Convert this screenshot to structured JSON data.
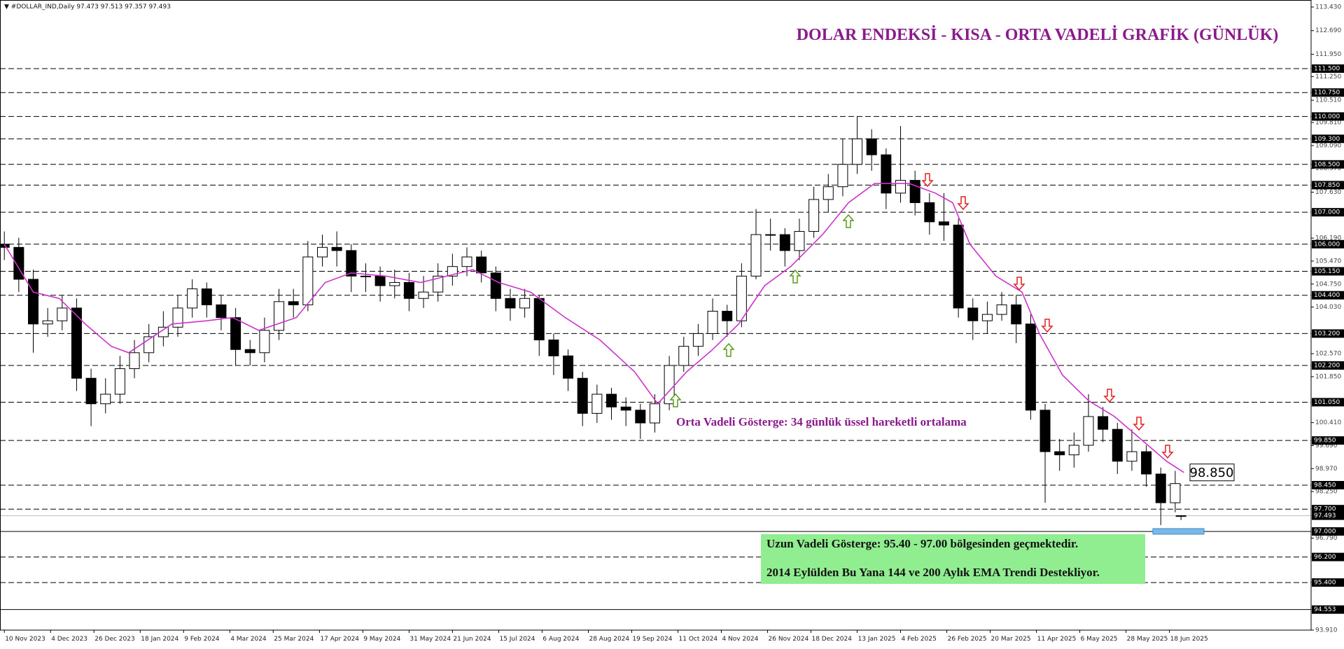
{
  "chart_data": {
    "type": "candlestick",
    "symbol": "#DOLLAR_IND,Daily",
    "title": "DOLAR ENDEKSİ - KISA - ORTA VADELİ GRAFİK (GÜNLÜK)",
    "annotation": "Orta Vadeli Gösterge: 34 günlük üssel hareketli ortalama",
    "box_lines": [
      "Uzun Vadeli Gösterge: 95.40 - 97.00 bölgesinden geçmektedir.",
      "2014 Eylülden Bu Yana 144 ve 200 Aylık EMA Trendi Destekliyor."
    ],
    "xlim": [
      -1.5,
      452
    ],
    "ylim": [
      93.91,
      113.43
    ],
    "xticks": [
      {
        "value": 0,
        "label": "10 Nov 2023"
      },
      {
        "value": 16,
        "label": "4 Dec 2023"
      },
      {
        "value": 31,
        "label": "26 Dec 2023"
      },
      {
        "value": 47,
        "label": "18 Jan 2024"
      },
      {
        "value": 62,
        "label": "9 Feb 2024"
      },
      {
        "value": 78,
        "label": "4 Mar 2024"
      },
      {
        "value": 93,
        "label": "25 Mar 2024"
      },
      {
        "value": 109,
        "label": "17 Apr 2024"
      },
      {
        "value": 124,
        "label": "9 May 2024"
      },
      {
        "value": 140,
        "label": "31 May 2024"
      },
      {
        "value": 155,
        "label": "21 Jun 2024"
      },
      {
        "value": 171,
        "label": "15 Jul 2024"
      },
      {
        "value": 186,
        "label": "6 Aug 2024"
      },
      {
        "value": 202,
        "label": "28 Aug 2024"
      },
      {
        "value": 217,
        "label": "19 Sep 2024"
      },
      {
        "value": 233,
        "label": "11 Oct 2024"
      },
      {
        "value": 248,
        "label": "4 Nov 2024"
      },
      {
        "value": 264,
        "label": "26 Nov 2024"
      },
      {
        "value": 279,
        "label": "18 Dec 2024"
      },
      {
        "value": 295,
        "label": "13 Jan 2025"
      },
      {
        "value": 310,
        "label": "4 Feb 2025"
      },
      {
        "value": 326,
        "label": "26 Feb 2025"
      },
      {
        "value": 341,
        "label": "20 Mar 2025"
      },
      {
        "value": 357,
        "label": "11 Apr 2025"
      },
      {
        "value": 372,
        "label": "6 May 2025"
      },
      {
        "value": 388,
        "label": "28 May 2025"
      },
      {
        "value": 403,
        "label": "18 Jun 2025"
      }
    ],
    "yticks": [
      {
        "value": 113.43,
        "label": "113.430"
      },
      {
        "value": 112.69,
        "label": "112.690"
      },
      {
        "value": 111.95,
        "label": "111.950"
      },
      {
        "value": 111.25,
        "label": "111.250"
      },
      {
        "value": 110.51,
        "label": "110.510"
      },
      {
        "value": 109.81,
        "label": "109.810"
      },
      {
        "value": 109.09,
        "label": "109.090"
      },
      {
        "value": 108.37,
        "label": "108.370"
      },
      {
        "value": 107.63,
        "label": "107.630"
      },
      {
        "value": 106.19,
        "label": "106.190"
      },
      {
        "value": 105.47,
        "label": "105.470"
      },
      {
        "value": 104.75,
        "label": "104.750"
      },
      {
        "value": 104.03,
        "label": "104.030"
      },
      {
        "value": 102.57,
        "label": "102.570"
      },
      {
        "value": 101.85,
        "label": "101.850"
      },
      {
        "value": 100.41,
        "label": "100.410"
      },
      {
        "value": 99.69,
        "label": "99.690"
      },
      {
        "value": 98.97,
        "label": "98.970"
      },
      {
        "value": 98.25,
        "label": "98.250"
      },
      {
        "value": 96.79,
        "label": "96.790"
      },
      {
        "value": 93.91,
        "label": "93.910"
      }
    ],
    "levels": [
      {
        "value": 111.5,
        "label": "111.500",
        "line": "dash"
      },
      {
        "value": 110.75,
        "label": "110.750",
        "line": "dash"
      },
      {
        "value": 110.0,
        "label": "110.000",
        "line": "dash"
      },
      {
        "value": 109.3,
        "label": "109.300",
        "line": "dash"
      },
      {
        "value": 108.5,
        "label": "108.500",
        "line": "dash"
      },
      {
        "value": 107.85,
        "label": "107.850",
        "line": "dash"
      },
      {
        "value": 107.0,
        "label": "107.000",
        "line": "dash"
      },
      {
        "value": 106.0,
        "label": "106.000",
        "line": "dash"
      },
      {
        "value": 105.15,
        "label": "105.150",
        "line": "dash"
      },
      {
        "value": 104.4,
        "label": "104.400",
        "line": "dash"
      },
      {
        "value": 103.2,
        "label": "103.200",
        "line": "dash"
      },
      {
        "value": 102.2,
        "label": "102.200",
        "line": "dash"
      },
      {
        "value": 101.05,
        "label": "101.050",
        "line": "dash"
      },
      {
        "value": 99.85,
        "label": "99.850",
        "line": "dash"
      },
      {
        "value": 98.45,
        "label": "98.450",
        "line": "dash"
      },
      {
        "value": 97.7,
        "label": "97.700",
        "line": "dash"
      },
      {
        "value": 97.0,
        "label": "97.000",
        "line": "solid"
      },
      {
        "value": 96.2,
        "label": "96.200",
        "line": "dash"
      },
      {
        "value": 95.4,
        "label": "95.400",
        "line": "dash"
      },
      {
        "value": 94.553,
        "label": "94.553",
        "line": "solid"
      }
    ],
    "x": [
      0,
      5,
      10,
      15,
      20,
      25,
      30,
      35,
      40,
      45,
      50,
      55,
      60,
      65,
      70,
      75,
      80,
      85,
      90,
      95,
      100,
      105,
      110,
      115,
      120,
      125,
      130,
      135,
      140,
      145,
      150,
      155,
      160,
      165,
      170,
      175,
      180,
      185,
      190,
      195,
      200,
      205,
      210,
      215,
      220,
      225,
      230,
      235,
      240,
      245,
      250,
      255,
      260,
      265,
      270,
      275,
      280,
      285,
      290,
      295,
      300,
      305,
      310,
      315,
      320,
      325,
      330,
      335,
      340,
      345,
      350,
      355,
      360,
      365,
      370,
      375,
      380,
      385,
      390,
      395,
      400,
      405,
      407
    ],
    "open": [
      106.0,
      105.9,
      104.9,
      103.5,
      103.6,
      104.0,
      101.8,
      101.0,
      101.3,
      102.1,
      102.6,
      103.1,
      103.4,
      104.0,
      104.6,
      104.1,
      103.7,
      102.7,
      102.6,
      103.3,
      104.2,
      104.1,
      105.6,
      105.9,
      105.8,
      105.0,
      105.0,
      104.7,
      104.8,
      104.3,
      104.5,
      105.0,
      105.3,
      105.6,
      105.1,
      104.3,
      104.0,
      104.3,
      103.0,
      102.5,
      101.8,
      100.7,
      101.3,
      100.9,
      100.8,
      100.4,
      101.0,
      102.2,
      102.8,
      103.2,
      103.9,
      103.6,
      105.0,
      106.3,
      106.3,
      105.8,
      106.4,
      107.4,
      107.8,
      108.5,
      109.3,
      108.8,
      107.6,
      108.0,
      107.3,
      106.7,
      106.6,
      104.0,
      103.6,
      103.8,
      104.1,
      103.5,
      100.8,
      99.5,
      99.4,
      99.7,
      100.6,
      100.2,
      99.2,
      99.5,
      98.8,
      97.9,
      97.473
    ],
    "high": [
      106.4,
      106.2,
      105.2,
      104.0,
      104.4,
      104.3,
      102.1,
      101.8,
      102.5,
      103.0,
      103.5,
      103.9,
      104.4,
      104.9,
      104.8,
      104.4,
      104.0,
      103.0,
      103.7,
      104.6,
      104.6,
      106.1,
      106.3,
      106.4,
      106.0,
      105.4,
      105.3,
      105.2,
      105.1,
      105.0,
      105.4,
      105.7,
      105.9,
      105.8,
      105.3,
      104.6,
      104.6,
      104.4,
      103.2,
      102.7,
      102.0,
      101.6,
      101.5,
      101.2,
      101.0,
      101.3,
      102.5,
      103.1,
      103.5,
      104.3,
      104.1,
      105.4,
      107.1,
      106.8,
      106.5,
      106.8,
      107.8,
      108.2,
      109.3,
      110.0,
      109.6,
      109.0,
      109.7,
      108.3,
      107.6,
      107.6,
      106.8,
      104.3,
      104.2,
      104.5,
      104.4,
      103.8,
      101.0,
      99.9,
      100.1,
      101.3,
      100.9,
      100.4,
      100.2,
      99.7,
      99.0,
      98.9,
      97.513
    ],
    "low": [
      105.5,
      104.5,
      102.6,
      103.1,
      103.3,
      101.4,
      100.3,
      100.7,
      101.0,
      101.8,
      102.3,
      102.8,
      103.1,
      103.7,
      103.7,
      103.3,
      102.2,
      102.2,
      102.3,
      103.0,
      103.7,
      103.9,
      105.3,
      105.3,
      104.5,
      104.5,
      104.2,
      104.3,
      103.9,
      104.0,
      104.2,
      104.7,
      105.0,
      104.8,
      103.9,
      103.6,
      103.7,
      102.5,
      101.9,
      101.4,
      100.3,
      100.4,
      100.5,
      100.3,
      99.9,
      100.1,
      100.8,
      102.0,
      102.5,
      103.0,
      103.1,
      103.4,
      104.9,
      105.8,
      105.3,
      105.5,
      106.2,
      107.0,
      107.5,
      108.2,
      108.3,
      107.1,
      107.3,
      106.9,
      106.3,
      106.1,
      103.7,
      103.0,
      103.2,
      103.6,
      102.9,
      100.5,
      97.9,
      98.9,
      99.0,
      99.5,
      99.8,
      98.8,
      98.9,
      98.4,
      97.2,
      97.6,
      97.357
    ],
    "close": [
      105.9,
      104.9,
      103.5,
      103.6,
      104.0,
      101.8,
      101.0,
      101.3,
      102.1,
      102.6,
      103.1,
      103.4,
      104.0,
      104.6,
      104.1,
      103.7,
      102.7,
      102.6,
      103.3,
      104.2,
      104.1,
      105.6,
      105.9,
      105.8,
      105.0,
      105.0,
      104.7,
      104.8,
      104.3,
      104.5,
      105.0,
      105.3,
      105.6,
      105.1,
      104.3,
      104.0,
      104.3,
      103.0,
      102.5,
      101.8,
      100.7,
      101.3,
      100.9,
      100.8,
      100.4,
      101.0,
      102.2,
      102.8,
      103.2,
      103.9,
      103.6,
      105.0,
      106.3,
      106.3,
      105.8,
      106.4,
      107.4,
      107.8,
      108.5,
      109.3,
      108.8,
      107.6,
      108.0,
      107.3,
      106.7,
      106.6,
      104.0,
      103.6,
      103.8,
      104.1,
      103.5,
      100.8,
      99.5,
      99.4,
      99.7,
      100.6,
      100.2,
      99.2,
      99.5,
      98.8,
      97.9,
      98.5,
      97.493
    ],
    "ema": {
      "color": "#cc33cc",
      "x": [
        0,
        10,
        19,
        28,
        37,
        43,
        58,
        70,
        79,
        88,
        101,
        111,
        120,
        132,
        144,
        153,
        162,
        171,
        182,
        194,
        206,
        218,
        226,
        236,
        245,
        254,
        263,
        272,
        283,
        292,
        301,
        313,
        322,
        328,
        334,
        343,
        352,
        358,
        366,
        375,
        384,
        393,
        402,
        408
      ],
      "values": [
        106.0,
        104.5,
        104.3,
        103.5,
        102.8,
        102.6,
        103.5,
        103.6,
        103.7,
        103.3,
        103.7,
        104.8,
        105.1,
        105.0,
        104.8,
        105.0,
        105.2,
        104.8,
        104.5,
        103.7,
        103.0,
        102.0,
        101.0,
        102.0,
        102.7,
        103.5,
        104.7,
        105.3,
        106.3,
        107.3,
        107.9,
        107.9,
        107.6,
        107.3,
        106.0,
        105.0,
        104.5,
        103.2,
        101.9,
        101.1,
        100.6,
        99.9,
        99.2,
        98.85
      ]
    },
    "callout": {
      "value": 98.85,
      "label": "98.850"
    }
  }
}
